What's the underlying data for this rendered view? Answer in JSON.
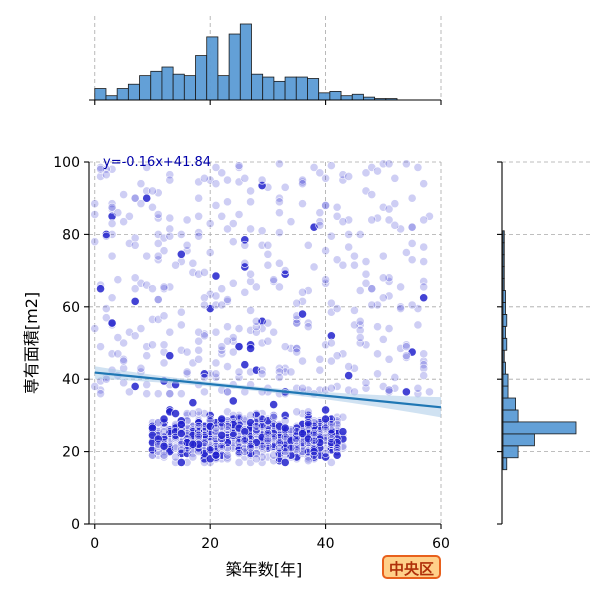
{
  "badge": {
    "text": "中央区"
  },
  "colors": {
    "points": "#2222cc",
    "regression": "#1f77b4",
    "confidence_band": "#a9cbe8",
    "histogram": "#5b9bd5",
    "badge_fill": "#ffd089",
    "badge_border": "#e8601c"
  },
  "chart_data": [
    {
      "type": "scatter",
      "panel": "joint",
      "xlabel": "築年数[年]",
      "ylabel": "専有面積[m2]",
      "xlim": [
        -1,
        60
      ],
      "ylim": [
        0,
        100
      ],
      "xticks": [
        0,
        20,
        40,
        60
      ],
      "yticks": [
        0,
        20,
        40,
        60,
        80,
        100
      ],
      "grid": true,
      "regression": {
        "label": "y=-0.16x+41.84",
        "slope": -0.16,
        "intercept": 41.84,
        "x_range": [
          0,
          60
        ]
      },
      "clusters": [
        {
          "name": "dense low-area band",
          "x_range": [
            4,
            43
          ],
          "y_range": [
            17,
            36
          ],
          "approx_points": 720
        },
        {
          "name": "upper scatter",
          "x_range": [
            0,
            58
          ],
          "y_range": [
            36,
            100
          ],
          "approx_points": 430
        }
      ]
    },
    {
      "type": "bar",
      "panel": "top-marginal-histogram",
      "axis": "x",
      "bin_edges_start": 0,
      "bin_width": 1.94,
      "values": [
        8,
        3,
        8,
        11,
        17,
        20,
        23,
        18,
        17,
        31,
        44,
        17,
        46,
        53,
        18,
        16,
        13,
        16,
        16,
        15,
        5,
        6,
        3,
        4,
        2,
        1,
        1
      ]
    },
    {
      "type": "bar",
      "panel": "right-marginal-histogram",
      "axis": "y",
      "bin_edges_start": 15,
      "bin_width": 3.3,
      "values": [
        3,
        12,
        25,
        58,
        12,
        10,
        4,
        4,
        2,
        1,
        3,
        2,
        3,
        2,
        2,
        1,
        1,
        1,
        1,
        1,
        0,
        0,
        0,
        0,
        0,
        0
      ]
    }
  ]
}
